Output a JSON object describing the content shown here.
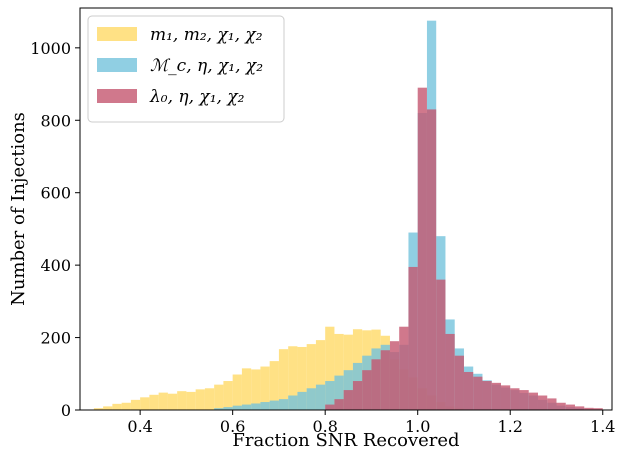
{
  "chart_data": {
    "type": "histogram",
    "xlabel": "Fraction SNR Recovered",
    "ylabel": "Number of Injections",
    "xlim": [
      0.27,
      1.42
    ],
    "ylim": [
      0,
      1110
    ],
    "xticks": [
      0.4,
      0.6,
      0.8,
      1.0,
      1.2,
      1.4
    ],
    "xtick_labels": [
      "0.4",
      "0.6",
      "0.8",
      "1.0",
      "1.2",
      "1.4"
    ],
    "yticks": [
      0,
      200,
      400,
      600,
      800,
      1000
    ],
    "ytick_labels": [
      "0",
      "200",
      "400",
      "600",
      "800",
      "1000"
    ],
    "bin_width": 0.02,
    "legend_position": "upper-left",
    "series": [
      {
        "name": "m1, m2, χ1, χ2",
        "legend_label": "m₁, m₂, χ₁, χ₂",
        "color": "#FFD966",
        "bins": [
          [
            0.3,
            5
          ],
          [
            0.32,
            10
          ],
          [
            0.34,
            17
          ],
          [
            0.36,
            20
          ],
          [
            0.38,
            28
          ],
          [
            0.4,
            35
          ],
          [
            0.42,
            42
          ],
          [
            0.44,
            48
          ],
          [
            0.46,
            45
          ],
          [
            0.48,
            52
          ],
          [
            0.5,
            50
          ],
          [
            0.52,
            57
          ],
          [
            0.54,
            60
          ],
          [
            0.56,
            70
          ],
          [
            0.58,
            80
          ],
          [
            0.6,
            98
          ],
          [
            0.62,
            115
          ],
          [
            0.64,
            112
          ],
          [
            0.66,
            120
          ],
          [
            0.68,
            135
          ],
          [
            0.7,
            168
          ],
          [
            0.72,
            176
          ],
          [
            0.74,
            174
          ],
          [
            0.76,
            182
          ],
          [
            0.78,
            193
          ],
          [
            0.8,
            230
          ],
          [
            0.82,
            210
          ],
          [
            0.84,
            208
          ],
          [
            0.86,
            223
          ],
          [
            0.88,
            220
          ],
          [
            0.9,
            222
          ],
          [
            0.92,
            205
          ],
          [
            0.94,
            140
          ],
          [
            0.96,
            112
          ],
          [
            0.98,
            90
          ],
          [
            1.0,
            60
          ],
          [
            1.02,
            40
          ],
          [
            1.04,
            22
          ],
          [
            1.06,
            10
          ],
          [
            1.08,
            5
          ]
        ]
      },
      {
        "name": "Mc, η, χ1, χ2",
        "legend_label": "ℳ_c, η, χ₁, χ₂",
        "color": "#74C3DC",
        "bins": [
          [
            0.56,
            5
          ],
          [
            0.58,
            8
          ],
          [
            0.6,
            12
          ],
          [
            0.62,
            15
          ],
          [
            0.64,
            18
          ],
          [
            0.66,
            22
          ],
          [
            0.68,
            26
          ],
          [
            0.7,
            30
          ],
          [
            0.72,
            40
          ],
          [
            0.74,
            50
          ],
          [
            0.76,
            60
          ],
          [
            0.78,
            70
          ],
          [
            0.8,
            80
          ],
          [
            0.82,
            95
          ],
          [
            0.84,
            110
          ],
          [
            0.86,
            130
          ],
          [
            0.88,
            150
          ],
          [
            0.9,
            170
          ],
          [
            0.92,
            180
          ],
          [
            0.94,
            160
          ],
          [
            0.96,
            180
          ],
          [
            0.98,
            490
          ],
          [
            1.0,
            820
          ],
          [
            1.02,
            1075
          ],
          [
            1.04,
            480
          ],
          [
            1.06,
            250
          ],
          [
            1.08,
            170
          ],
          [
            1.1,
            120
          ],
          [
            1.12,
            100
          ],
          [
            1.14,
            82
          ],
          [
            1.16,
            70
          ],
          [
            1.18,
            62
          ],
          [
            1.2,
            55
          ],
          [
            1.22,
            47
          ],
          [
            1.24,
            40
          ],
          [
            1.26,
            28
          ],
          [
            1.28,
            20
          ],
          [
            1.3,
            12
          ],
          [
            1.32,
            8
          ],
          [
            1.34,
            5
          ]
        ]
      },
      {
        "name": "λ0, η, χ1, χ2",
        "legend_label": "λ₀, η, χ₁, χ₂",
        "color": "#C4566F",
        "bins": [
          [
            0.8,
            15
          ],
          [
            0.82,
            30
          ],
          [
            0.84,
            55
          ],
          [
            0.86,
            80
          ],
          [
            0.88,
            110
          ],
          [
            0.9,
            140
          ],
          [
            0.92,
            165
          ],
          [
            0.94,
            190
          ],
          [
            0.96,
            230
          ],
          [
            0.98,
            395
          ],
          [
            1.0,
            890
          ],
          [
            1.02,
            830
          ],
          [
            1.04,
            360
          ],
          [
            1.06,
            210
          ],
          [
            1.08,
            150
          ],
          [
            1.1,
            105
          ],
          [
            1.12,
            92
          ],
          [
            1.14,
            80
          ],
          [
            1.16,
            75
          ],
          [
            1.18,
            68
          ],
          [
            1.2,
            60
          ],
          [
            1.22,
            55
          ],
          [
            1.24,
            48
          ],
          [
            1.26,
            40
          ],
          [
            1.28,
            32
          ],
          [
            1.3,
            20
          ],
          [
            1.32,
            15
          ],
          [
            1.34,
            10
          ],
          [
            1.36,
            6
          ],
          [
            1.38,
            5
          ]
        ]
      }
    ]
  }
}
